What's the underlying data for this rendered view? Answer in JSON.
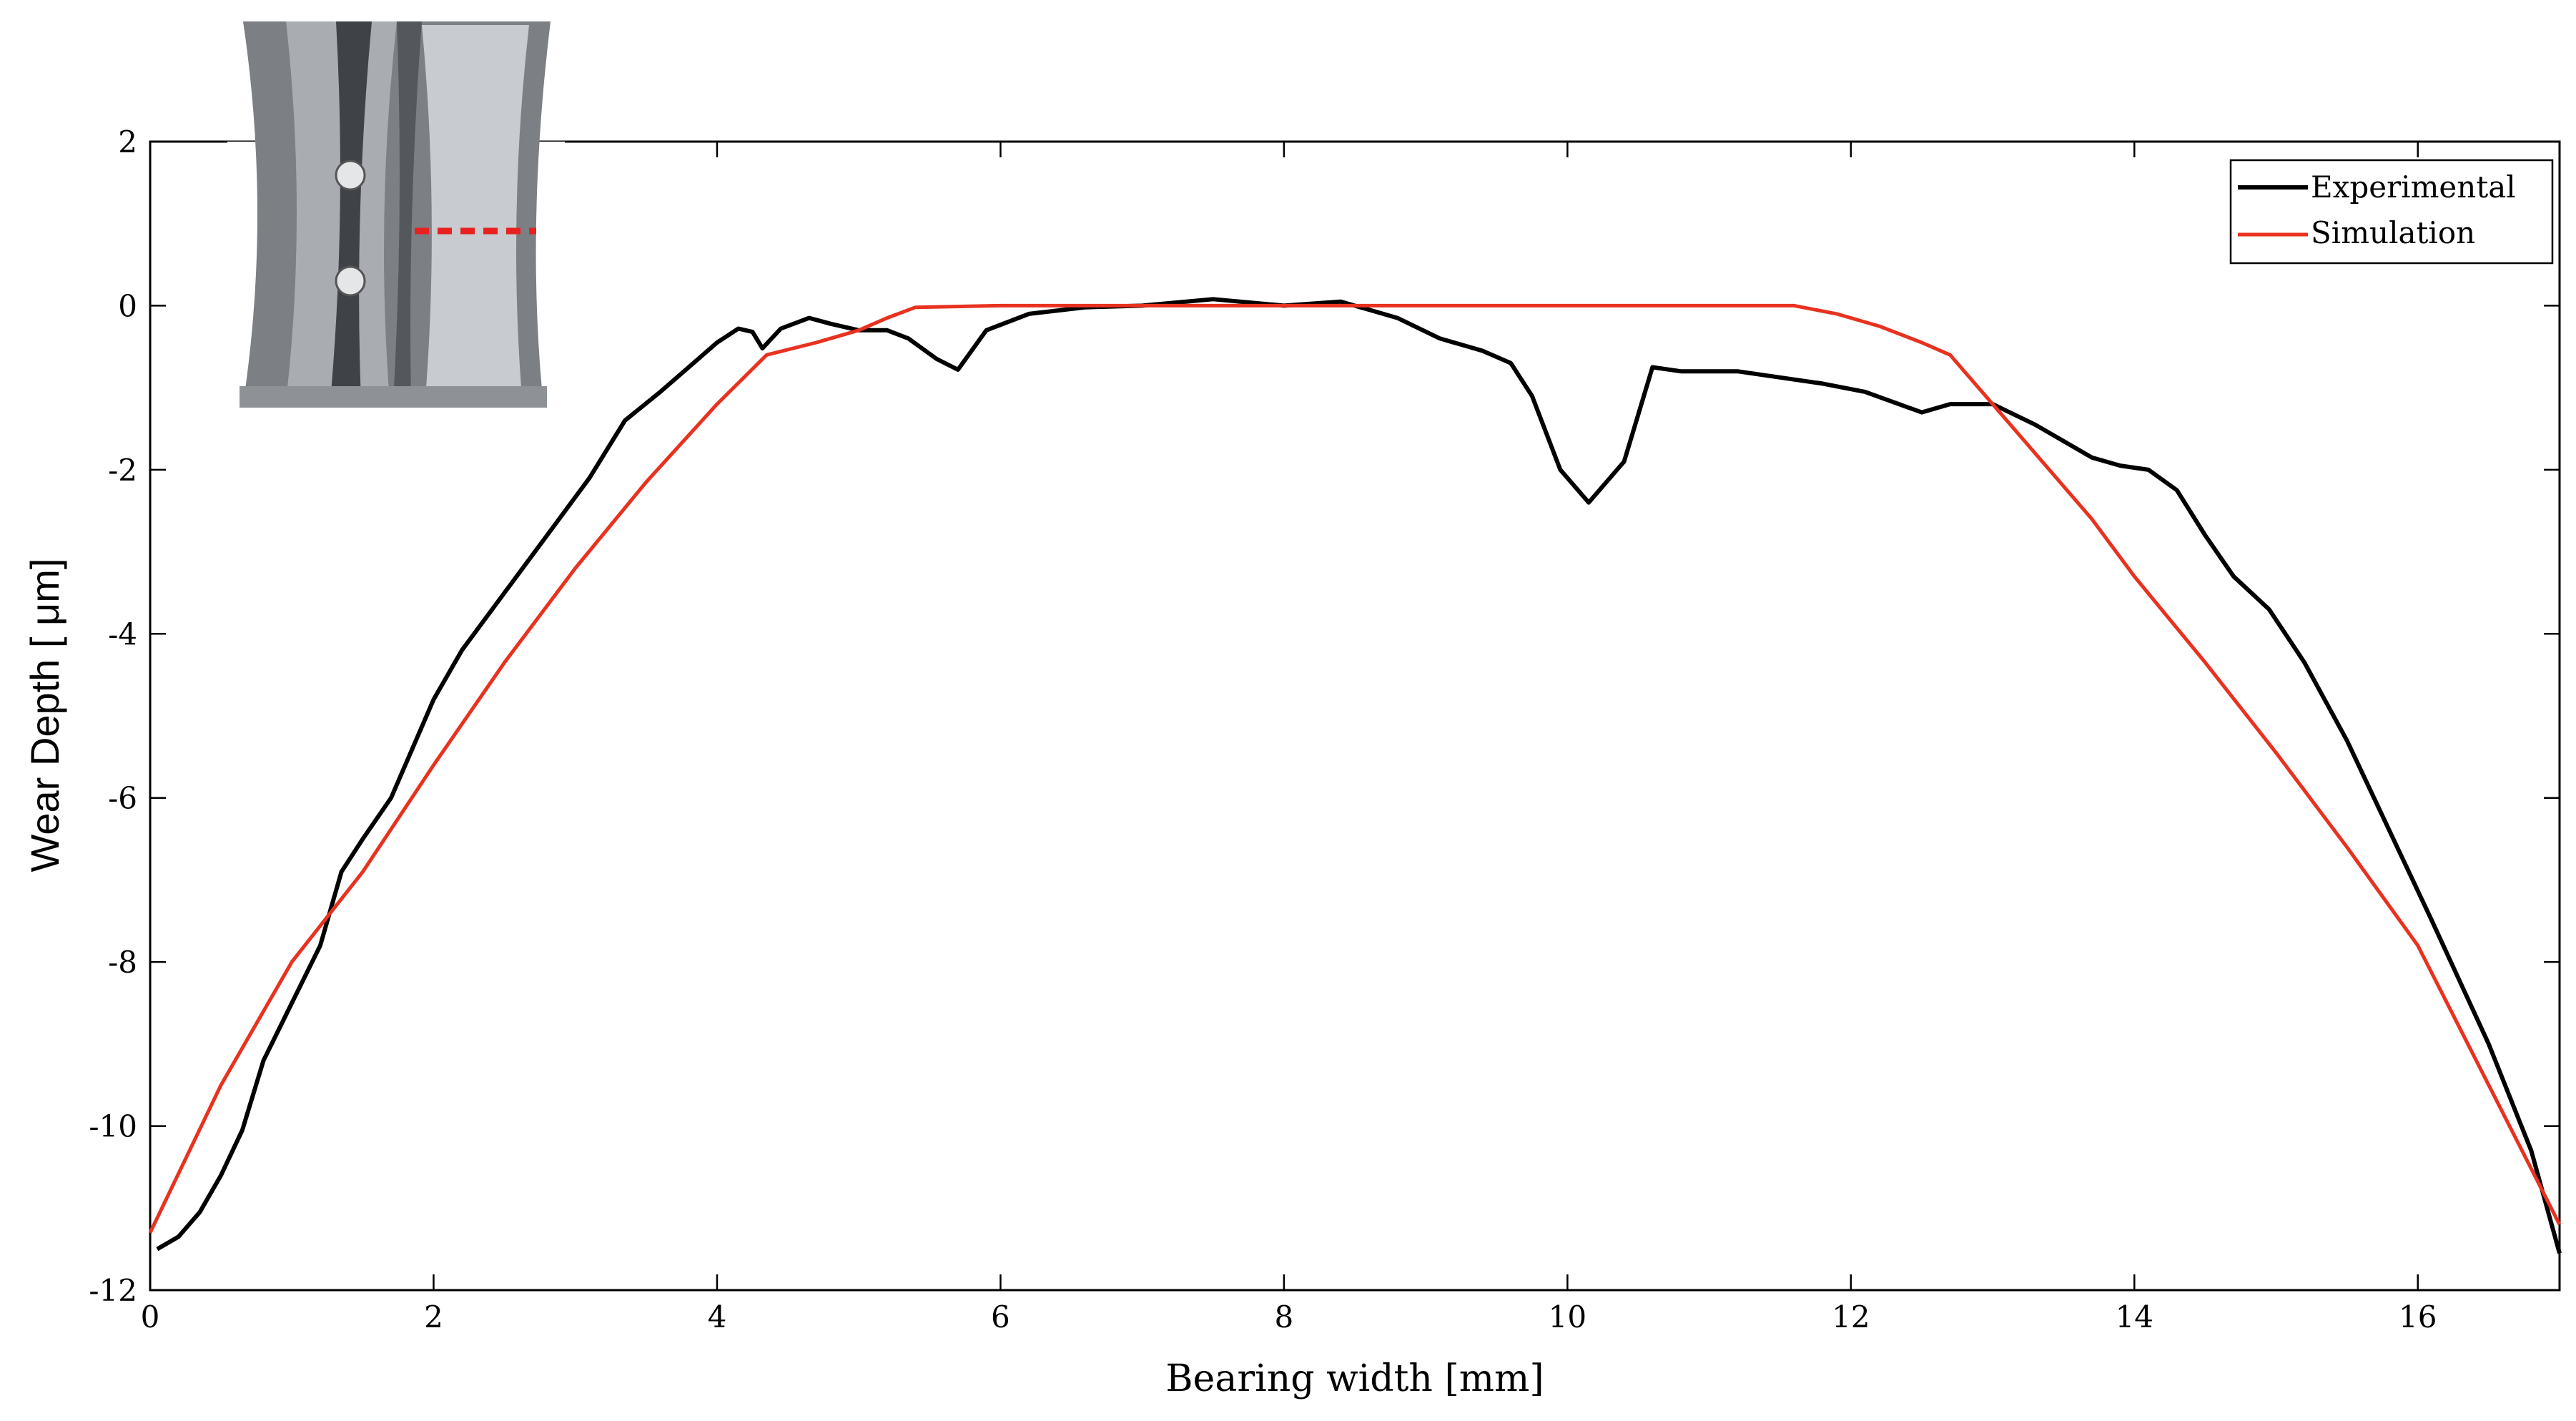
{
  "chart_data": {
    "type": "line",
    "title": "",
    "xlabel": "Bearing width [mm]",
    "ylabel": "Wear Depth [ μm]",
    "xlim": [
      0,
      17
    ],
    "ylim": [
      -12,
      2
    ],
    "xticks": [
      0,
      2,
      4,
      6,
      8,
      10,
      12,
      14,
      16
    ],
    "yticks": [
      2,
      0,
      -2,
      -4,
      -6,
      -8,
      -10,
      -12
    ],
    "grid": false,
    "legend_position": "top-right",
    "inset_image": "bearing-shell-photo",
    "series": [
      {
        "name": "Experimental",
        "color": "#000000",
        "x": [
          0.05,
          0.2,
          0.35,
          0.5,
          0.65,
          0.8,
          1.0,
          1.2,
          1.35,
          1.5,
          1.7,
          2.0,
          2.2,
          2.5,
          2.8,
          3.1,
          3.35,
          3.6,
          3.8,
          4.0,
          4.15,
          4.25,
          4.32,
          4.45,
          4.65,
          4.8,
          5.0,
          5.2,
          5.35,
          5.55,
          5.7,
          5.9,
          6.2,
          6.6,
          7.0,
          7.5,
          8.0,
          8.4,
          8.8,
          9.1,
          9.4,
          9.6,
          9.75,
          9.95,
          10.15,
          10.4,
          10.6,
          10.8,
          11.2,
          11.6,
          11.8,
          12.1,
          12.5,
          12.7,
          13.0,
          13.3,
          13.7,
          13.9,
          14.1,
          14.3,
          14.5,
          14.7,
          14.95,
          15.2,
          15.5,
          15.8,
          16.1,
          16.5,
          16.8,
          17.0
        ],
        "y": [
          -11.5,
          -11.35,
          -11.05,
          -10.6,
          -10.05,
          -9.2,
          -8.5,
          -7.8,
          -6.9,
          -6.5,
          -6.0,
          -4.8,
          -4.2,
          -3.5,
          -2.8,
          -2.1,
          -1.4,
          -1.05,
          -0.75,
          -0.45,
          -0.28,
          -0.32,
          -0.52,
          -0.28,
          -0.15,
          -0.22,
          -0.3,
          -0.3,
          -0.4,
          -0.65,
          -0.78,
          -0.3,
          -0.1,
          -0.02,
          0.0,
          0.08,
          0.0,
          0.05,
          -0.15,
          -0.4,
          -0.55,
          -0.7,
          -1.1,
          -2.0,
          -2.4,
          -1.9,
          -0.75,
          -0.8,
          -0.8,
          -0.9,
          -0.95,
          -1.05,
          -1.3,
          -1.2,
          -1.2,
          -1.45,
          -1.85,
          -1.95,
          -2.0,
          -2.25,
          -2.8,
          -3.3,
          -3.7,
          -4.35,
          -5.3,
          -6.4,
          -7.5,
          -9.0,
          -10.3,
          -11.55
        ]
      },
      {
        "name": "Simulation",
        "color": "#e8321f",
        "x": [
          0.0,
          0.5,
          1.0,
          1.5,
          2.0,
          2.5,
          3.0,
          3.5,
          4.0,
          4.35,
          4.7,
          5.0,
          5.2,
          5.4,
          6.0,
          7.0,
          8.0,
          9.0,
          10.0,
          11.0,
          11.6,
          11.9,
          12.2,
          12.5,
          12.7,
          13.0,
          13.3,
          13.7,
          14.0,
          14.5,
          15.0,
          15.5,
          16.0,
          16.5,
          17.0
        ],
        "y": [
          -11.3,
          -9.5,
          -8.0,
          -6.9,
          -5.6,
          -4.35,
          -3.2,
          -2.15,
          -1.2,
          -0.6,
          -0.45,
          -0.3,
          -0.15,
          -0.02,
          0.0,
          0.0,
          0.0,
          0.0,
          0.0,
          0.0,
          0.0,
          -0.1,
          -0.25,
          -0.45,
          -0.6,
          -1.2,
          -1.8,
          -2.6,
          -3.3,
          -4.35,
          -5.45,
          -6.6,
          -7.8,
          -9.5,
          -11.2
        ]
      }
    ]
  }
}
